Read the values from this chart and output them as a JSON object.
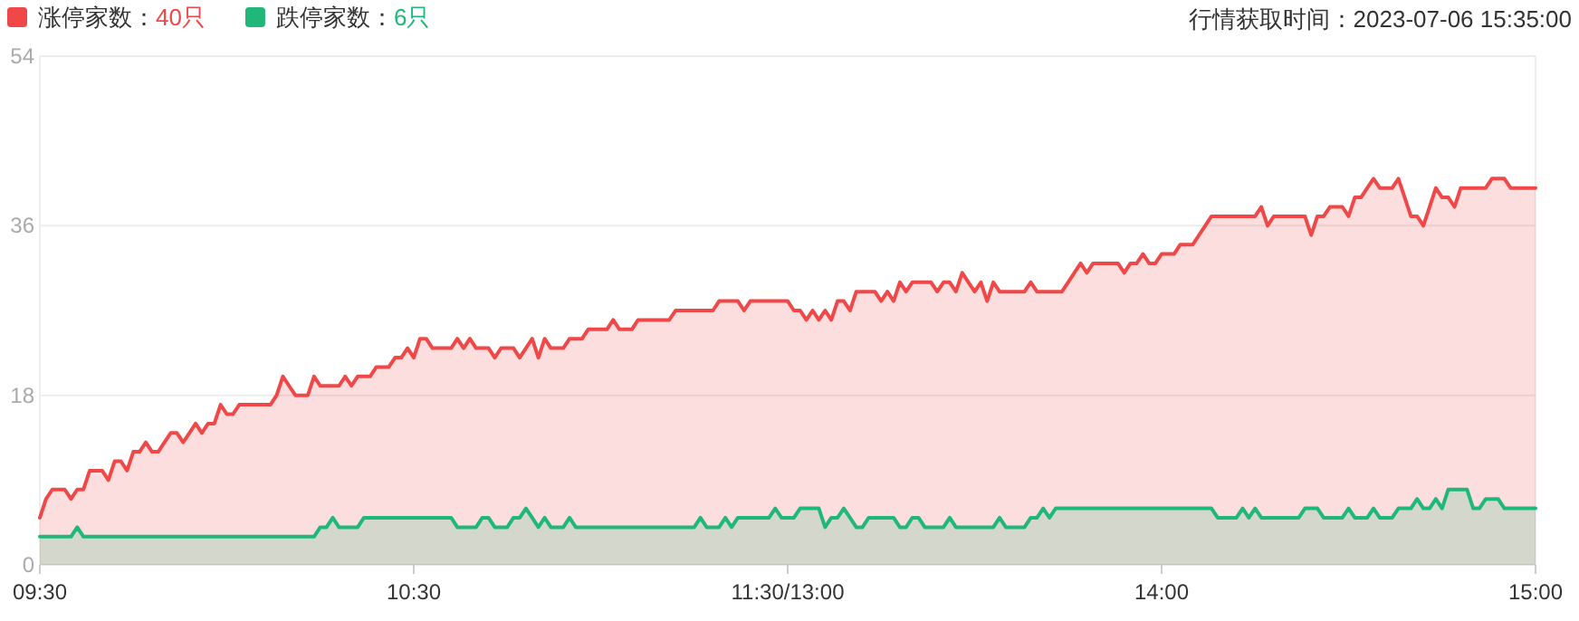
{
  "chart_data": {
    "type": "area",
    "annotations": [
      "行情获取时间：2023-07-06 15:35:00"
    ],
    "categories": [
      "09:30",
      null,
      null,
      null,
      null,
      null,
      null,
      null,
      null,
      null,
      null,
      null,
      null,
      null,
      null,
      null,
      null,
      null,
      null,
      null,
      null,
      null,
      null,
      null,
      null,
      null,
      null,
      null,
      null,
      null,
      null,
      null,
      null,
      null,
      null,
      null,
      null,
      null,
      null,
      null,
      null,
      null,
      null,
      null,
      null,
      null,
      null,
      null,
      null,
      null,
      null,
      null,
      null,
      null,
      null,
      null,
      null,
      null,
      null,
      null,
      "10:30",
      null,
      null,
      null,
      null,
      null,
      null,
      null,
      null,
      null,
      null,
      null,
      null,
      null,
      null,
      null,
      null,
      null,
      null,
      null,
      null,
      null,
      null,
      null,
      null,
      null,
      null,
      null,
      null,
      null,
      null,
      null,
      null,
      null,
      null,
      null,
      null,
      null,
      null,
      null,
      null,
      null,
      null,
      null,
      null,
      null,
      null,
      null,
      null,
      null,
      null,
      null,
      null,
      null,
      null,
      null,
      null,
      null,
      null,
      null,
      "11:30/13:00",
      null,
      null,
      null,
      null,
      null,
      null,
      null,
      null,
      null,
      null,
      null,
      null,
      null,
      null,
      null,
      null,
      null,
      null,
      null,
      null,
      null,
      null,
      null,
      null,
      null,
      null,
      null,
      null,
      null,
      null,
      null,
      null,
      null,
      null,
      null,
      null,
      null,
      null,
      null,
      null,
      null,
      null,
      null,
      null,
      null,
      null,
      null,
      null,
      null,
      null,
      null,
      null,
      null,
      null,
      null,
      null,
      null,
      null,
      null,
      "14:00",
      null,
      null,
      null,
      null,
      null,
      null,
      null,
      null,
      null,
      null,
      null,
      null,
      null,
      null,
      null,
      null,
      null,
      null,
      null,
      null,
      null,
      null,
      null,
      null,
      null,
      null,
      null,
      null,
      null,
      null,
      null,
      null,
      null,
      null,
      null,
      null,
      null,
      null,
      null,
      null,
      null,
      null,
      null,
      null,
      null,
      null,
      null,
      null,
      null,
      null,
      null,
      null,
      null,
      null,
      null,
      null,
      null,
      null,
      null,
      "15:00"
    ],
    "ylim": [
      0,
      54
    ],
    "yticks": [
      0,
      18,
      36,
      54
    ],
    "grid": "y",
    "legend": "top left",
    "series": [
      {
        "name": "涨停家数：40只",
        "color": "#f04848",
        "values": [
          5,
          7,
          8,
          8,
          8,
          7,
          8,
          8,
          10,
          10,
          10,
          9,
          11,
          11,
          10,
          12,
          12,
          13,
          12,
          12,
          13,
          14,
          14,
          13,
          14,
          15,
          14,
          15,
          15,
          17,
          16,
          16,
          17,
          17,
          17,
          17,
          17,
          17,
          18,
          20,
          19,
          18,
          18,
          18,
          20,
          19,
          19,
          19,
          19,
          20,
          19,
          20,
          20,
          20,
          21,
          21,
          21,
          22,
          22,
          23,
          22,
          24,
          24,
          23,
          23,
          23,
          23,
          24,
          23,
          24,
          23,
          23,
          23,
          22,
          23,
          23,
          23,
          22,
          23,
          24,
          22,
          24,
          23,
          23,
          23,
          24,
          24,
          24,
          25,
          25,
          25,
          25,
          26,
          25,
          25,
          25,
          26,
          26,
          26,
          26,
          26,
          26,
          27,
          27,
          27,
          27,
          27,
          27,
          27,
          28,
          28,
          28,
          28,
          27,
          28,
          28,
          28,
          28,
          28,
          28,
          28,
          27,
          27,
          26,
          27,
          26,
          27,
          26,
          28,
          28,
          27,
          29,
          29,
          29,
          29,
          28,
          29,
          28,
          30,
          29,
          30,
          30,
          30,
          30,
          29,
          30,
          30,
          29,
          31,
          30,
          29,
          30,
          28,
          30,
          29,
          29,
          29,
          29,
          29,
          30,
          29,
          29,
          29,
          29,
          29,
          30,
          31,
          32,
          31,
          32,
          32,
          32,
          32,
          32,
          31,
          32,
          32,
          33,
          32,
          32,
          33,
          33,
          33,
          34,
          34,
          34,
          35,
          36,
          37,
          37,
          37,
          37,
          37,
          37,
          37,
          37,
          38,
          36,
          37,
          37,
          37,
          37,
          37,
          37,
          35,
          37,
          37,
          38,
          38,
          38,
          37,
          39,
          39,
          40,
          41,
          40,
          40,
          40,
          41,
          39,
          37,
          37,
          36,
          38,
          40,
          39,
          39,
          38,
          40,
          40,
          40,
          40,
          40,
          41,
          41,
          41,
          40,
          40,
          40,
          40,
          40
        ]
      },
      {
        "name": "跌停家数：6只",
        "color": "#20b87a",
        "values": [
          3,
          3,
          3,
          3,
          3,
          3,
          4,
          3,
          3,
          3,
          3,
          3,
          3,
          3,
          3,
          3,
          3,
          3,
          3,
          3,
          3,
          3,
          3,
          3,
          3,
          3,
          3,
          3,
          3,
          3,
          3,
          3,
          3,
          3,
          3,
          3,
          3,
          3,
          3,
          3,
          3,
          3,
          3,
          3,
          3,
          4,
          4,
          5,
          4,
          4,
          4,
          4,
          5,
          5,
          5,
          5,
          5,
          5,
          5,
          5,
          5,
          5,
          5,
          5,
          5,
          5,
          5,
          4,
          4,
          4,
          4,
          5,
          5,
          4,
          4,
          4,
          5,
          5,
          6,
          5,
          4,
          5,
          4,
          4,
          4,
          5,
          4,
          4,
          4,
          4,
          4,
          4,
          4,
          4,
          4,
          4,
          4,
          4,
          4,
          4,
          4,
          4,
          4,
          4,
          4,
          4,
          5,
          4,
          4,
          4,
          5,
          4,
          5,
          5,
          5,
          5,
          5,
          5,
          6,
          5,
          5,
          5,
          6,
          6,
          6,
          6,
          4,
          5,
          5,
          6,
          5,
          4,
          4,
          5,
          5,
          5,
          5,
          5,
          4,
          4,
          5,
          5,
          4,
          4,
          4,
          4,
          5,
          4,
          4,
          4,
          4,
          4,
          4,
          4,
          5,
          4,
          4,
          4,
          4,
          5,
          5,
          6,
          5,
          6,
          6,
          6,
          6,
          6,
          6,
          6,
          6,
          6,
          6,
          6,
          6,
          6,
          6,
          6,
          6,
          6,
          6,
          6,
          6,
          6,
          6,
          6,
          6,
          6,
          6,
          5,
          5,
          5,
          5,
          6,
          5,
          6,
          5,
          5,
          5,
          5,
          5,
          5,
          5,
          6,
          6,
          6,
          5,
          5,
          5,
          5,
          6,
          5,
          5,
          5,
          6,
          5,
          5,
          5,
          6,
          6,
          6,
          7,
          6,
          6,
          7,
          6,
          8,
          8,
          8,
          8,
          6,
          6,
          7,
          7,
          7,
          6,
          6,
          6,
          6,
          6,
          6
        ]
      }
    ]
  }
}
